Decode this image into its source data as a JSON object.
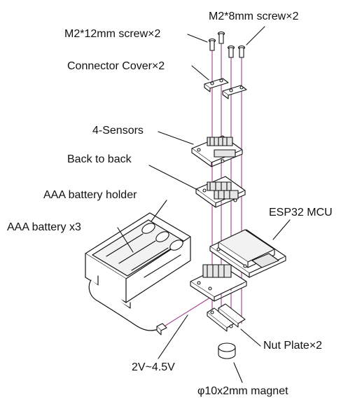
{
  "labels": {
    "screw_12mm": "M2*12mm screw×2",
    "screw_8mm": "M2*8mm screw×2",
    "connector_cover": "Connector Cover×2",
    "sensors": "4-Sensors",
    "back_to_back": "Back to back",
    "battery_holder": "AAA battery holder",
    "battery": "AAA battery x3",
    "esp32": "ESP32 MCU",
    "nut_plate": "Nut Plate×2",
    "voltage": "2V~4.5V",
    "magnet": "φ10x2mm magnet"
  },
  "colors": {
    "line": "#111111",
    "axis": "#a0408c",
    "fill": "#ffffff",
    "shade": "#e6e6e6"
  }
}
